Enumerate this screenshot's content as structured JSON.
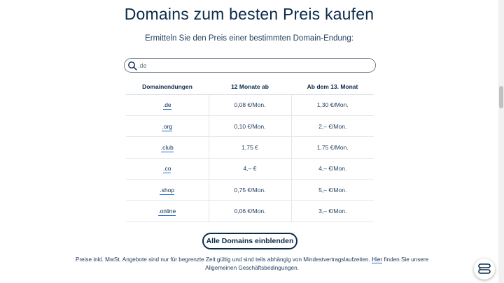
{
  "heading": "Domains zum besten Preis kaufen",
  "subheading": "Ermitteln Sie den Preis einer bestimmten Domain-Endung:",
  "search": {
    "placeholder": ".de",
    "icon": "search-icon"
  },
  "table": {
    "headers": [
      "Domainendungen",
      "12 Monate ab",
      "Ab dem 13. Monat"
    ],
    "rows": [
      {
        "tld": ".de",
        "first_year": "0,08 €/Mon.",
        "after": "1,30 €/Mon."
      },
      {
        "tld": ".org",
        "first_year": "0,10 €/Mon.",
        "after": "2,– €/Mon."
      },
      {
        "tld": ".club",
        "first_year": "1,75 €",
        "after": "1,75 €/Mon."
      },
      {
        "tld": ".co",
        "first_year": "4,– €",
        "after": "4,– €/Mon."
      },
      {
        "tld": ".shop",
        "first_year": "0,75 €/Mon.",
        "after": "5,– €/Mon."
      },
      {
        "tld": ".online",
        "first_year": "0,06 €/Mon.",
        "after": "3,– €/Mon."
      }
    ]
  },
  "show_all_button": "Alle Domains einblenden",
  "footnote": {
    "before": "Preise inkl. MwSt. Angebote sind nur für begrenzte Zeit gültig und sind teils abhängig von Mindestvertragslaufzeiten. ",
    "link": "Hier",
    "after": " finden Sie unsere Allgemeinen Geschäftsbedingungen."
  },
  "colors": {
    "text": "#0b2a4a",
    "link_underline": "#1f6fd6",
    "border": "#6f7d8c"
  },
  "chat_widget": {
    "icon": "chat-icon"
  }
}
